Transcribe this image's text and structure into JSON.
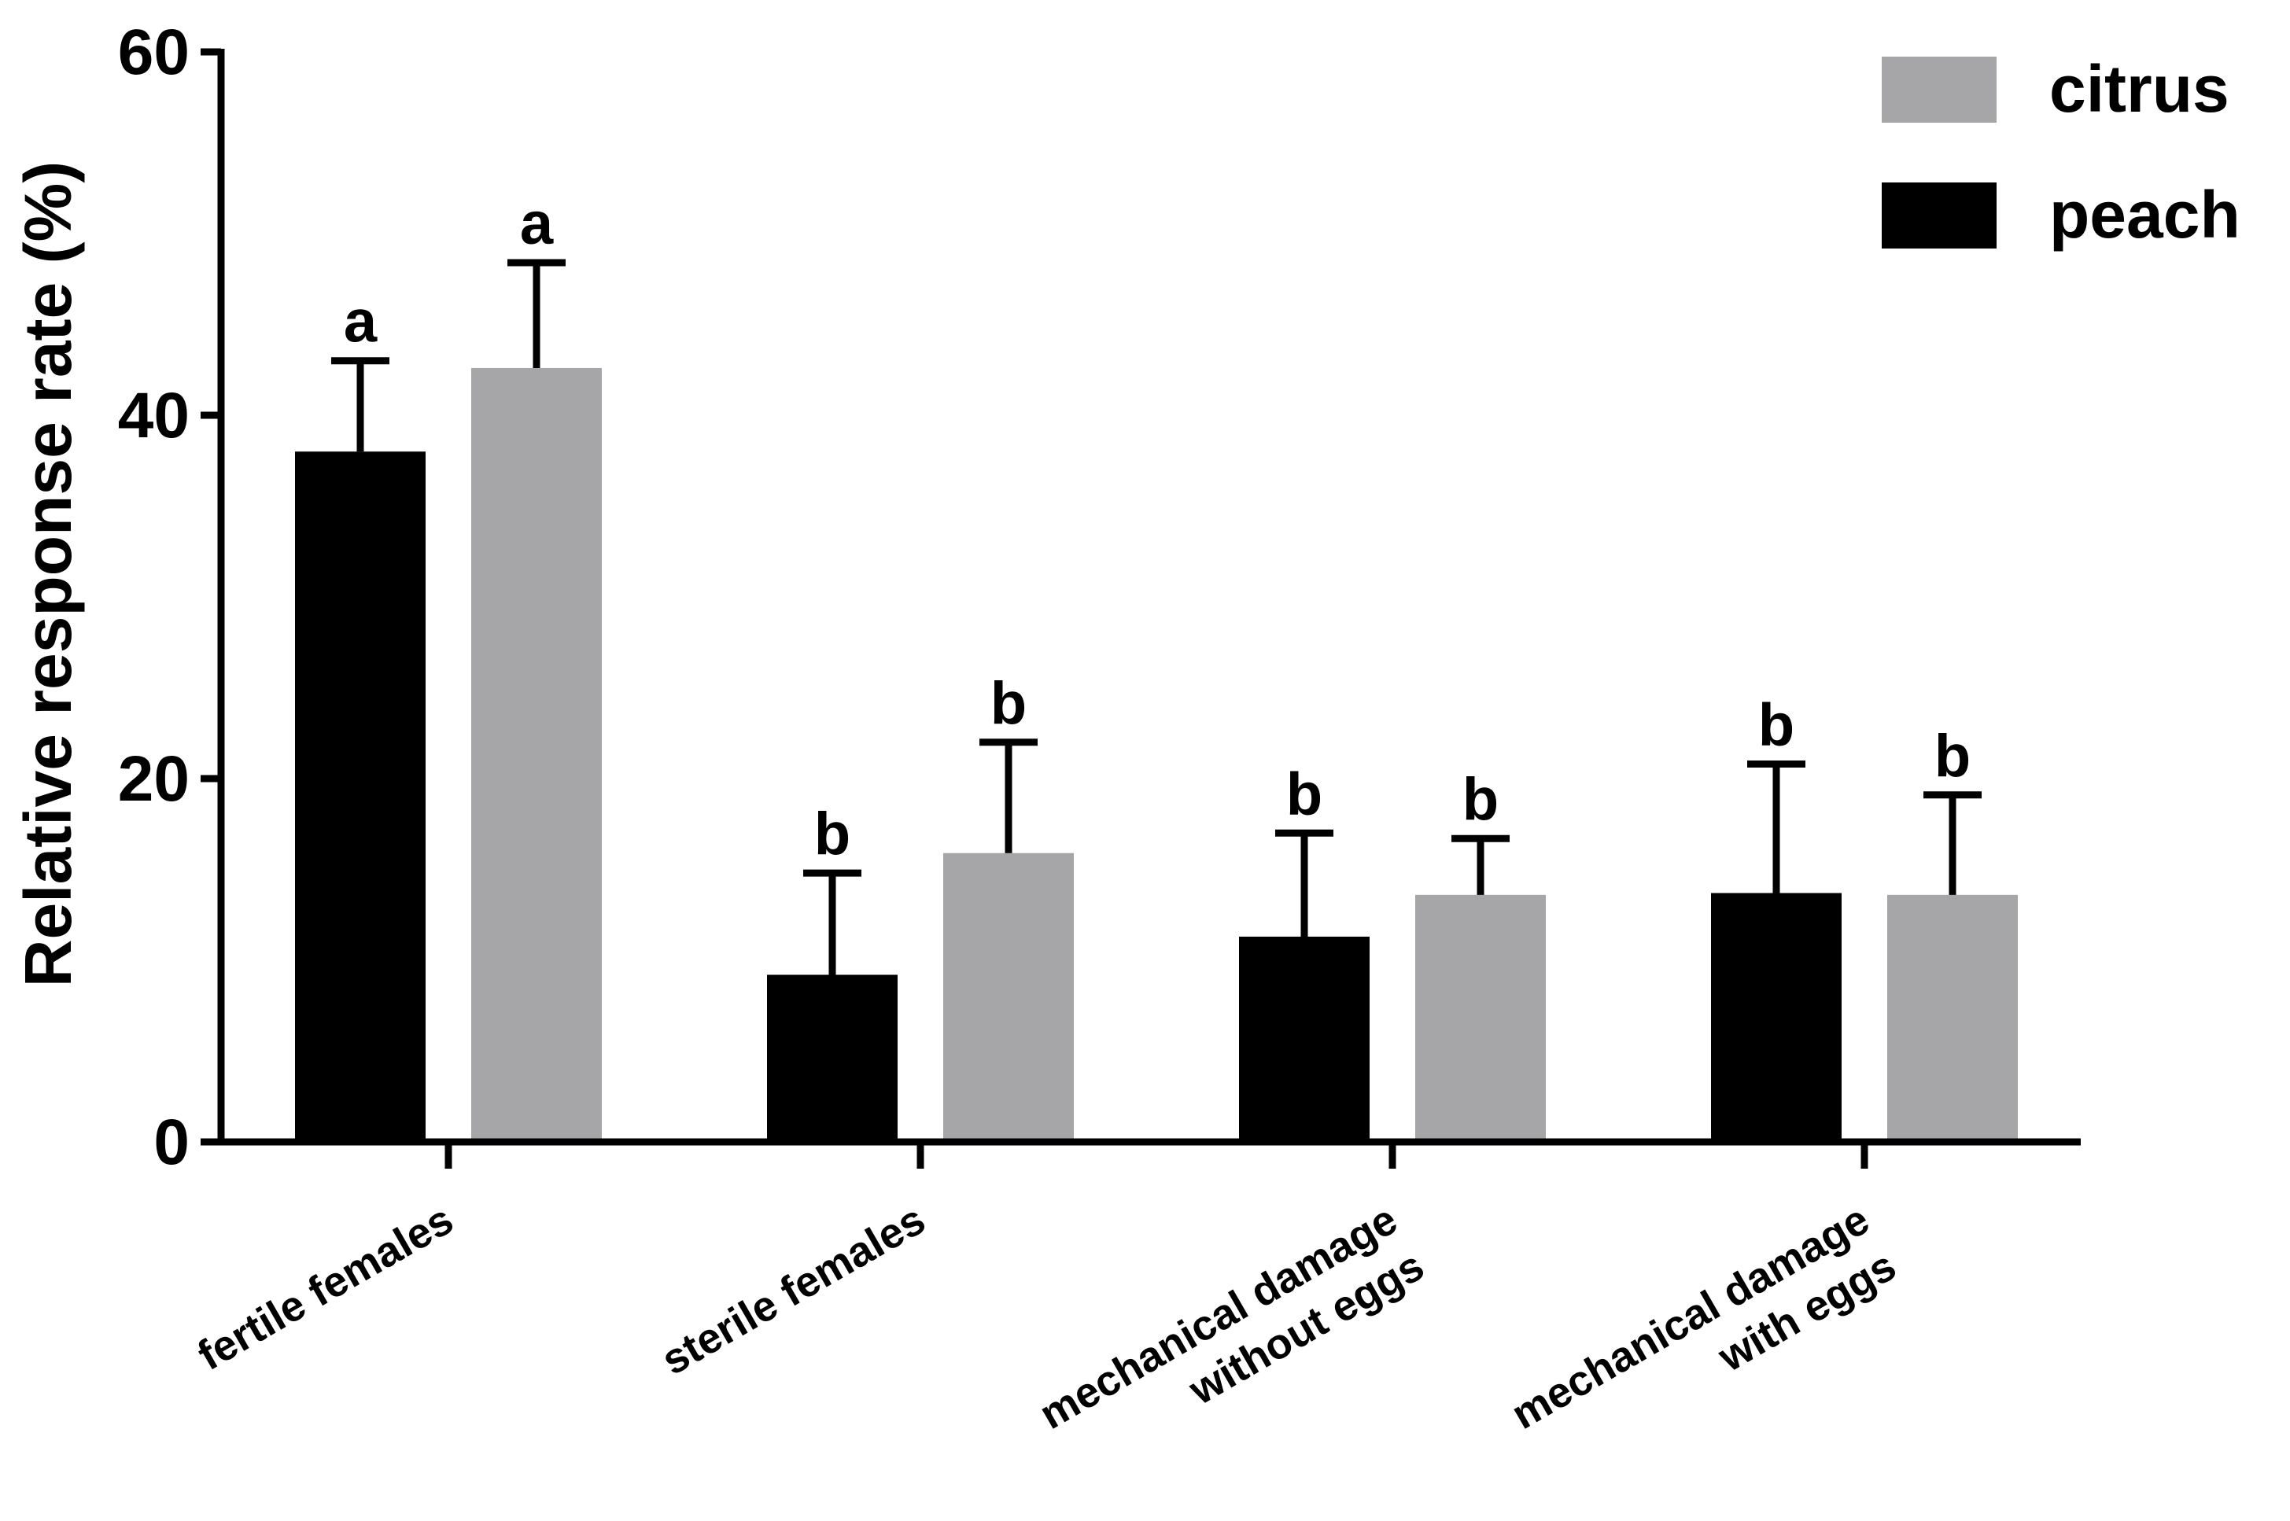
{
  "chart_data": {
    "type": "bar",
    "title": "",
    "xlabel": "",
    "ylabel": "Relative response rate (%)",
    "ylim": [
      0,
      60
    ],
    "yticks": [
      0,
      20,
      40,
      60
    ],
    "grid": false,
    "legend_position": "top-right",
    "categories": [
      [
        "fertile females"
      ],
      [
        "sterile females"
      ],
      [
        "mechanical damage",
        "without eggs"
      ],
      [
        "mechanical damage",
        "with eggs"
      ]
    ],
    "series": [
      {
        "name": "peach",
        "color": "#000000",
        "values": [
          38,
          9.2,
          11.3,
          13.7
        ],
        "errors": [
          5.0,
          5.6,
          5.7,
          7.1
        ],
        "significance": [
          "a",
          "b",
          "b",
          "b"
        ]
      },
      {
        "name": "citrus",
        "color": "#a6a6a9",
        "values": [
          42.6,
          15.9,
          13.6,
          13.6
        ],
        "errors": [
          5.8,
          6.1,
          3.1,
          5.5
        ],
        "significance": [
          "a",
          "b",
          "b",
          "b"
        ]
      }
    ],
    "legend_order": [
      "citrus",
      "peach"
    ]
  }
}
